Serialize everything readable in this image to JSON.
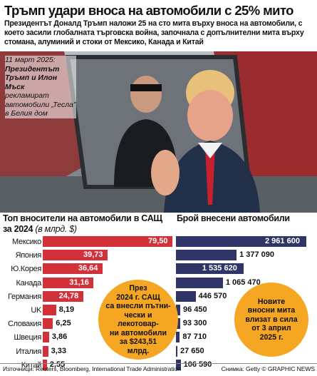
{
  "header": {
    "title": "Тръмп удари вноса на автомобили с 25% мито",
    "subtitle": "Президентът Доналд Тръмп наложи 25 на сто мита върху вноса на автомобили, с което засили глобалната търговска война, започнала с допълнителни мита върху стомана, алуминий и стоки от Мексико, Канада и Китай"
  },
  "photo": {
    "caption_date": "11 март 2025:",
    "caption_names": "Президентът Тръмп и Илон Мъск",
    "caption_rest": "рекламират автомобили „Тесла” в Белия дом"
  },
  "left_heading": {
    "main": "Топ вносители на автомобили в САЩ за 2024",
    "unit": "(в млрд. $)"
  },
  "right_heading": {
    "main": "Брой внесени автомобили"
  },
  "chart_data": [
    {
      "type": "bar",
      "orientation": "horizontal",
      "title": "Топ вносители на автомобили в САЩ за 2024 (в млрд. $)",
      "categories": [
        "Мексико",
        "Япония",
        "Ю.Корея",
        "Канада",
        "Германия",
        "UK",
        "Словакия",
        "Швеция",
        "Италия",
        "Китай"
      ],
      "values": [
        79.5,
        39.73,
        36.64,
        31.16,
        24.78,
        8.19,
        6.25,
        3.86,
        3.33,
        2.55
      ],
      "value_labels": [
        "79,50",
        "39,73",
        "36,64",
        "31,16",
        "24,78",
        "8,19",
        "6,25",
        "3,86",
        "3,33",
        "2,55"
      ],
      "color": "#d2313a"
    },
    {
      "type": "bar",
      "orientation": "horizontal",
      "title": "Брой внесени автомобили",
      "categories": [
        "Мексико",
        "Япония",
        "Ю.Корея",
        "Канада",
        "Германия",
        "UK",
        "Словакия",
        "Швеция",
        "Италия",
        "Китай"
      ],
      "values": [
        2961600,
        1377090,
        1535620,
        1065470,
        446570,
        96450,
        93300,
        87710,
        27650,
        106590
      ],
      "value_labels": [
        "2 961 600",
        "1 377 090",
        "1 535 620",
        "1 065 470",
        "446 570",
        "96 450",
        "93 300",
        "87 710",
        "27 650",
        "106 590"
      ],
      "color": "#2f3566"
    }
  ],
  "bubbles": {
    "left": [
      "През",
      "2024 г. САЩ",
      "са внесли пътни-",
      "чески и лекотовар-",
      "ни автомобили",
      "за $243,51",
      "млрд."
    ],
    "right": [
      "Новите",
      "вносни мита",
      "влизат в сила",
      "от 3 април",
      "2025 г."
    ]
  },
  "footer": {
    "sources": "Източници: Reuters, Bloomberg, International Trade Administration",
    "credit": "Снимка: Getty  © GRAPHIC NEWS"
  },
  "colors": {
    "red": "#d2313a",
    "navy": "#2f3566",
    "orange": "#f5a623"
  }
}
